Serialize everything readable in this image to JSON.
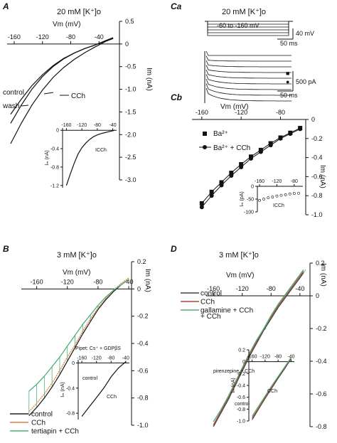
{
  "chart_data": [
    {
      "id": "A",
      "type": "line",
      "title": "20 mM [K⁺]o",
      "xlabel": "Vm (mV)",
      "ylabel": "Im (nA)",
      "xlim": [
        -170,
        5
      ],
      "ylim": [
        -3.0,
        0.5
      ],
      "xticks": [
        -160,
        -120,
        -80,
        -40
      ],
      "yticks": [
        0.5,
        0,
        -0.5,
        -1.0,
        -1.5,
        -2.0,
        -2.5,
        -3.0
      ],
      "ytick_labels": [
        "0.5",
        "0",
        "-0.5",
        "-1.0",
        "-1.5",
        "-2.0",
        "-2.5",
        "-3.0"
      ],
      "annotations": [
        "control",
        "wash",
        "CCh"
      ],
      "series": [
        {
          "name": "control",
          "x": [
            -165,
            -150,
            -135,
            -120,
            -105,
            -90,
            -75,
            -60,
            -45,
            -30,
            -20
          ],
          "y": [
            -1.55,
            -1.22,
            -0.92,
            -0.68,
            -0.48,
            -0.32,
            -0.2,
            -0.1,
            -0.02,
            0.07,
            0.13
          ]
        },
        {
          "name": "wash",
          "x": [
            -165,
            -150,
            -135,
            -120,
            -105,
            -90,
            -75,
            -60,
            -45,
            -30,
            -20
          ],
          "y": [
            -1.75,
            -1.35,
            -1.0,
            -0.72,
            -0.5,
            -0.33,
            -0.2,
            -0.1,
            -0.02,
            0.08,
            0.14
          ]
        },
        {
          "name": "CCh",
          "x": [
            -165,
            -150,
            -135,
            -120,
            -105,
            -90,
            -75,
            -60,
            -45,
            -30,
            -20
          ],
          "y": [
            -2.2,
            -1.75,
            -1.35,
            -1.02,
            -0.74,
            -0.52,
            -0.34,
            -0.19,
            -0.06,
            0.06,
            0.12
          ]
        }
      ],
      "inset": {
        "xticks": [
          -160,
          -120,
          -80,
          -40
        ],
        "xtick_labels": [
          "-160",
          "-120",
          "-80",
          "-40"
        ],
        "yticks": [
          0,
          -0.4,
          -0.8,
          -1.2
        ],
        "ytick_labels": [
          "0",
          "-0.4",
          "-0.8",
          "-1.2"
        ],
        "xlim": [
          -170,
          -30
        ],
        "ylim": [
          -1.25,
          0.05
        ],
        "ylabel": "Iₘ (nA)",
        "curve_label": "ICCh",
        "x": [
          -160,
          -150,
          -140,
          -130,
          -120,
          -110,
          -100,
          -90,
          -80,
          -70,
          -60,
          -50,
          -40,
          -35
        ],
        "y": [
          -1.2,
          -0.95,
          -0.72,
          -0.52,
          -0.38,
          -0.28,
          -0.2,
          -0.14,
          -0.1,
          -0.07,
          -0.05,
          -0.03,
          -0.01,
          0
        ]
      }
    },
    {
      "id": "Ca",
      "type": "line",
      "title": "20 mM [K⁺]o",
      "protocol_label": "-60 to -160 mV",
      "scalebars": [
        "40 mV",
        "50 ms",
        "500 pA",
        "50 ms"
      ],
      "markers": [
        "■",
        "●"
      ]
    },
    {
      "id": "Cb",
      "type": "scatter",
      "xlabel": "Vm (mV)",
      "ylabel": "Im (nA)",
      "xlim": [
        -170,
        -50
      ],
      "ylim": [
        -1.0,
        0
      ],
      "xticks": [
        -160,
        -120,
        -80
      ],
      "yticks": [
        0,
        -0.2,
        -0.4,
        -0.6,
        -0.8,
        -1.0
      ],
      "ytick_labels": [
        "0",
        "-0.2",
        "-0.4",
        "-0.6",
        "-0.8",
        "-1.0"
      ],
      "series": [
        {
          "name": "Ba²⁺",
          "x": [
            -160,
            -150,
            -140,
            -130,
            -120,
            -110,
            -100,
            -90,
            -80,
            -70,
            -60
          ],
          "y": [
            -0.88,
            -0.76,
            -0.66,
            -0.56,
            -0.47,
            -0.39,
            -0.32,
            -0.25,
            -0.19,
            -0.14,
            -0.09
          ]
        },
        {
          "name": "Ba²⁺ + CCh",
          "x": [
            -160,
            -150,
            -140,
            -130,
            -120,
            -110,
            -100,
            -90,
            -80,
            -70,
            -60
          ],
          "y": [
            -0.92,
            -0.8,
            -0.69,
            -0.59,
            -0.5,
            -0.41,
            -0.34,
            -0.27,
            -0.2,
            -0.15,
            -0.1
          ]
        }
      ],
      "inset": {
        "xticks": [
          -160,
          -120,
          -80
        ],
        "xtick_labels": [
          "-160",
          "-120",
          "-80"
        ],
        "yticks": [
          0,
          -50,
          -100
        ],
        "ytick_labels": [
          "0",
          "-50",
          "-100"
        ],
        "xlim": [
          -165,
          -60
        ],
        "ylim": [
          -100,
          0
        ],
        "ylabel": "Iₘ (pA)",
        "curve_label": "ICCh",
        "x": [
          -160,
          -150,
          -140,
          -130,
          -120,
          -110,
          -100,
          -90,
          -80,
          -70
        ],
        "y": [
          -55,
          -50,
          -45,
          -42,
          -38,
          -35,
          -33,
          -30,
          -28,
          -27
        ]
      }
    },
    {
      "id": "B",
      "type": "line",
      "title": "3 mM [K⁺]o",
      "xlabel": "Vm (mV)",
      "ylabel": "Im (nA)",
      "xlim": [
        -180,
        -28
      ],
      "ylim": [
        -1.0,
        0.2
      ],
      "xticks": [
        -160,
        -120,
        -80,
        -40
      ],
      "yticks": [
        0.2,
        0,
        -0.2,
        -0.4,
        -0.6,
        -0.8,
        -1.0
      ],
      "ytick_labels": [
        "0.2",
        "0",
        "-0.2",
        "-0.4",
        "-0.6",
        "-0.8",
        "-1.0"
      ],
      "legend": [
        "control",
        "CCh",
        "tertiapin + CCh"
      ],
      "series": [
        {
          "name": "control",
          "color": "#222222",
          "x": [
            -170,
            -160,
            -150,
            -140,
            -130,
            -120,
            -110,
            -100,
            -90,
            -80,
            -70,
            -60,
            -50,
            -40
          ],
          "y": [
            -0.93,
            -0.87,
            -0.8,
            -0.72,
            -0.63,
            -0.53,
            -0.43,
            -0.33,
            -0.24,
            -0.15,
            -0.08,
            -0.02,
            0.03,
            0.07
          ]
        },
        {
          "name": "CCh",
          "color": "#d9834a",
          "x": [
            -170,
            -160,
            -150,
            -140,
            -130,
            -120,
            -110,
            -100,
            -90,
            -80,
            -70,
            -60,
            -50,
            -40
          ],
          "y": [
            -0.9,
            -0.84,
            -0.77,
            -0.69,
            -0.6,
            -0.5,
            -0.41,
            -0.31,
            -0.22,
            -0.14,
            -0.07,
            -0.01,
            0.04,
            0.08
          ]
        },
        {
          "name": "tertiapin + CCh",
          "color": "#49b27a",
          "x": [
            -170,
            -160,
            -150,
            -140,
            -130,
            -120,
            -110,
            -100,
            -90,
            -80,
            -70,
            -60,
            -50,
            -40
          ],
          "y": [
            -0.75,
            -0.7,
            -0.64,
            -0.57,
            -0.5,
            -0.42,
            -0.34,
            -0.26,
            -0.19,
            -0.12,
            -0.06,
            -0.01,
            0.03,
            0.07
          ]
        }
      ],
      "inset": {
        "label": "Pipet: Cs⁺ + GDPβS",
        "xticks": [
          -160,
          -120,
          -80,
          -40
        ],
        "xtick_labels": [
          "-160",
          "-120",
          "-80",
          "-40"
        ],
        "yticks": [
          0,
          -0.4,
          -0.8
        ],
        "ytick_labels": [
          "0",
          "-0.4",
          "-0.8"
        ],
        "xlim": [
          -170,
          -30
        ],
        "ylim": [
          -0.9,
          0.05
        ],
        "ylabel": "Iₘ (nA)",
        "curve_labels": [
          "control",
          "CCh"
        ],
        "x": [
          -160,
          -140,
          -120,
          -100,
          -80,
          -60,
          -40
        ],
        "y": [
          -0.85,
          -0.7,
          -0.55,
          -0.4,
          -0.22,
          -0.08,
          0.02
        ]
      }
    },
    {
      "id": "D",
      "type": "line",
      "title": "3 mM [K⁺]o",
      "xlabel": "Vm (mV)",
      "ylabel": "Im (nA)",
      "xlim": [
        -170,
        -30
      ],
      "ylim": [
        -0.8,
        0.2
      ],
      "xticks": [
        -160,
        -120,
        -80,
        -40
      ],
      "yticks": [
        0.2,
        0,
        -0.2,
        -0.4,
        -0.6,
        -0.8
      ],
      "ytick_labels": [
        "0.2",
        "0",
        "-0.2",
        "-0.4",
        "-0.6",
        "-0.8"
      ],
      "legend": [
        "control",
        "CCh",
        "gallamine + CCh"
      ],
      "series": [
        {
          "name": "control",
          "color": "#444444",
          "x": [
            -160,
            -150,
            -140,
            -130,
            -120,
            -110,
            -100,
            -90,
            -80,
            -70,
            -60,
            -50,
            -40,
            -35
          ],
          "y": [
            -0.8,
            -0.72,
            -0.64,
            -0.55,
            -0.46,
            -0.37,
            -0.29,
            -0.21,
            -0.14,
            -0.07,
            -0.01,
            0.05,
            0.11,
            0.14
          ]
        },
        {
          "name": "CCh",
          "color": "#b5453c",
          "x": [
            -160,
            -150,
            -140,
            -130,
            -120,
            -110,
            -100,
            -90,
            -80,
            -70,
            -60,
            -50,
            -40,
            -35
          ],
          "y": [
            -0.79,
            -0.71,
            -0.63,
            -0.54,
            -0.45,
            -0.36,
            -0.28,
            -0.2,
            -0.13,
            -0.06,
            0.0,
            0.06,
            0.12,
            0.15
          ]
        },
        {
          "name": "gallamine + CCh",
          "color": "#49b27a",
          "x": [
            -160,
            -150,
            -140,
            -130,
            -120,
            -110,
            -100,
            -90,
            -80,
            -70,
            -60,
            -50,
            -40,
            -35
          ],
          "y": [
            -0.77,
            -0.7,
            -0.62,
            -0.53,
            -0.44,
            -0.35,
            -0.27,
            -0.2,
            -0.12,
            -0.05,
            0.01,
            0.07,
            0.13,
            0.16
          ]
        }
      ],
      "inset": {
        "xticks": [
          -160,
          -120,
          -80,
          -40
        ],
        "xtick_labels": [
          "-160",
          "-120",
          "-80",
          "-40"
        ],
        "yticks": [
          0.2,
          0,
          -0.2,
          -0.4,
          -0.6,
          -0.8,
          -1.0
        ],
        "ytick_labels": [
          "0.2",
          "0",
          "-0.2",
          "-0.4",
          "-0.6",
          "-0.8",
          "-1.0"
        ],
        "xlim": [
          -170,
          -30
        ],
        "ylim": [
          -1.0,
          0.2
        ],
        "ylabel": "Iₘ (nA)",
        "curve_labels": [
          "pirenzepine + CCh",
          "CCh",
          "control"
        ],
        "series": [
          {
            "color": "#444444",
            "x": [
              -160,
              -140,
              -120,
              -100,
              -80,
              -60,
              -40
            ],
            "y": [
              -0.98,
              -0.8,
              -0.62,
              -0.45,
              -0.28,
              -0.12,
              0.05
            ]
          },
          {
            "color": "#b5453c",
            "x": [
              -160,
              -140,
              -120,
              -100,
              -80,
              -60,
              -40
            ],
            "y": [
              -0.95,
              -0.78,
              -0.6,
              -0.43,
              -0.26,
              -0.1,
              0.06
            ]
          },
          {
            "color": "#49b27a",
            "x": [
              -160,
              -140,
              -120,
              -100,
              -80,
              -60,
              -40
            ],
            "y": [
              -0.92,
              -0.75,
              -0.58,
              -0.41,
              -0.25,
              -0.09,
              0.07
            ]
          }
        ]
      }
    }
  ]
}
